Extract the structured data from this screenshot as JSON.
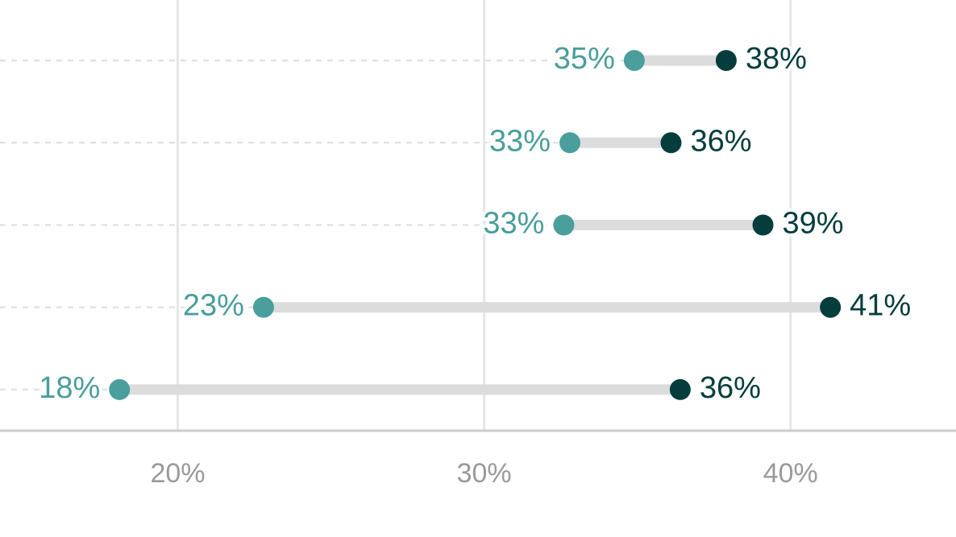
{
  "chart_data": {
    "type": "dumbbell",
    "categories": [
      null,
      null,
      null,
      null,
      null
    ],
    "series": [
      {
        "color": "#4a9e9b",
        "values": [
          34.9,
          32.8,
          32.6,
          22.8,
          18.1
        ],
        "value_labels": [
          "35%",
          "33%",
          "33%",
          "23%",
          "18%"
        ]
      },
      {
        "color": "#053d3d",
        "values": [
          37.9,
          36.1,
          39.1,
          41.3,
          36.4
        ],
        "value_labels": [
          "38%",
          "36%",
          "39%",
          "41%",
          "36%"
        ]
      }
    ],
    "xlim": [
      14.2,
      45.4
    ],
    "xticks": [
      {
        "value": 20,
        "label": "20%"
      },
      {
        "value": 30,
        "label": "30%"
      },
      {
        "value": 40,
        "label": "40%"
      }
    ],
    "grid": true
  }
}
